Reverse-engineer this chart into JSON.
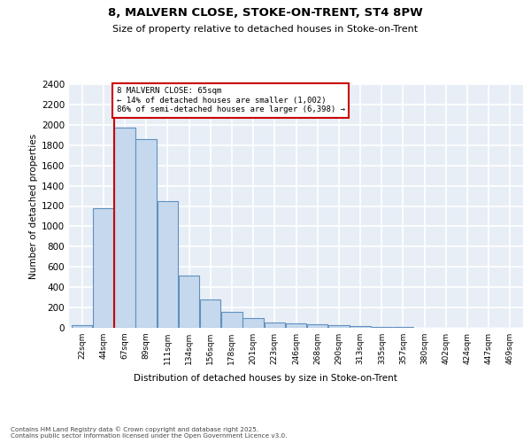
{
  "title1": "8, MALVERN CLOSE, STOKE-ON-TRENT, ST4 8PW",
  "title2": "Size of property relative to detached houses in Stoke-on-Trent",
  "xlabel": "Distribution of detached houses by size in Stoke-on-Trent",
  "ylabel": "Number of detached properties",
  "categories": [
    "22sqm",
    "44sqm",
    "67sqm",
    "89sqm",
    "111sqm",
    "134sqm",
    "156sqm",
    "178sqm",
    "201sqm",
    "223sqm",
    "246sqm",
    "268sqm",
    "290sqm",
    "313sqm",
    "335sqm",
    "357sqm",
    "380sqm",
    "402sqm",
    "424sqm",
    "447sqm",
    "469sqm"
  ],
  "values": [
    30,
    1175,
    1975,
    1855,
    1245,
    515,
    275,
    160,
    95,
    50,
    42,
    38,
    22,
    18,
    10,
    5,
    3,
    2,
    2,
    2,
    2
  ],
  "bar_color": "#c5d8ed",
  "bar_edge_color": "#6090c0",
  "vline_color": "#cc0000",
  "vline_position": 1.5,
  "annotation_text": "8 MALVERN CLOSE: 65sqm\n← 14% of detached houses are smaller (1,002)\n86% of semi-detached houses are larger (6,398) →",
  "ylim": [
    0,
    2400
  ],
  "yticks": [
    0,
    200,
    400,
    600,
    800,
    1000,
    1200,
    1400,
    1600,
    1800,
    2000,
    2200,
    2400
  ],
  "bg_color": "#e8eef6",
  "grid_color": "#ffffff",
  "footer1": "Contains HM Land Registry data © Crown copyright and database right 2025.",
  "footer2": "Contains public sector information licensed under the Open Government Licence v3.0."
}
